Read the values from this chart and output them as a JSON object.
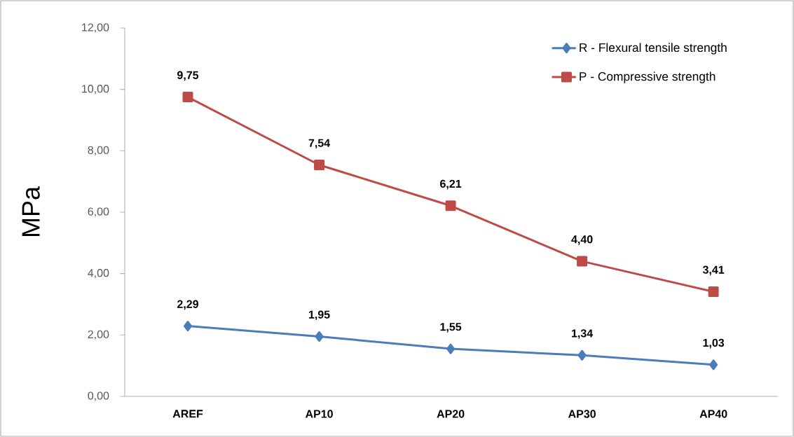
{
  "chart_data": {
    "type": "line",
    "ylabel": "MPa",
    "categories": [
      "AREF",
      "AP10",
      "AP20",
      "AP30",
      "AP40"
    ],
    "series": [
      {
        "name": "R - Flexural tensile strength",
        "color": "#4a7ebb",
        "marker": "diamond",
        "values": [
          2.29,
          1.95,
          1.55,
          1.34,
          1.03
        ],
        "value_labels": [
          "2,29",
          "1,95",
          "1,55",
          "1,34",
          "1,03"
        ]
      },
      {
        "name": "P - Compressive strength",
        "color": "#be4b48",
        "marker": "square",
        "values": [
          9.75,
          7.54,
          6.21,
          4.4,
          3.41
        ],
        "value_labels": [
          "9,75",
          "7,54",
          "6,21",
          "4,40",
          "3,41"
        ]
      }
    ],
    "ylim": [
      0,
      12
    ],
    "yticks": [
      {
        "value": 0,
        "label": "0,00"
      },
      {
        "value": 2,
        "label": "2,00"
      },
      {
        "value": 4,
        "label": "4,00"
      },
      {
        "value": 6,
        "label": "6,00"
      },
      {
        "value": 8,
        "label": "8,00"
      },
      {
        "value": 10,
        "label": "10,00"
      },
      {
        "value": 12,
        "label": "12,00"
      }
    ],
    "legend": "top right",
    "grid": false
  }
}
